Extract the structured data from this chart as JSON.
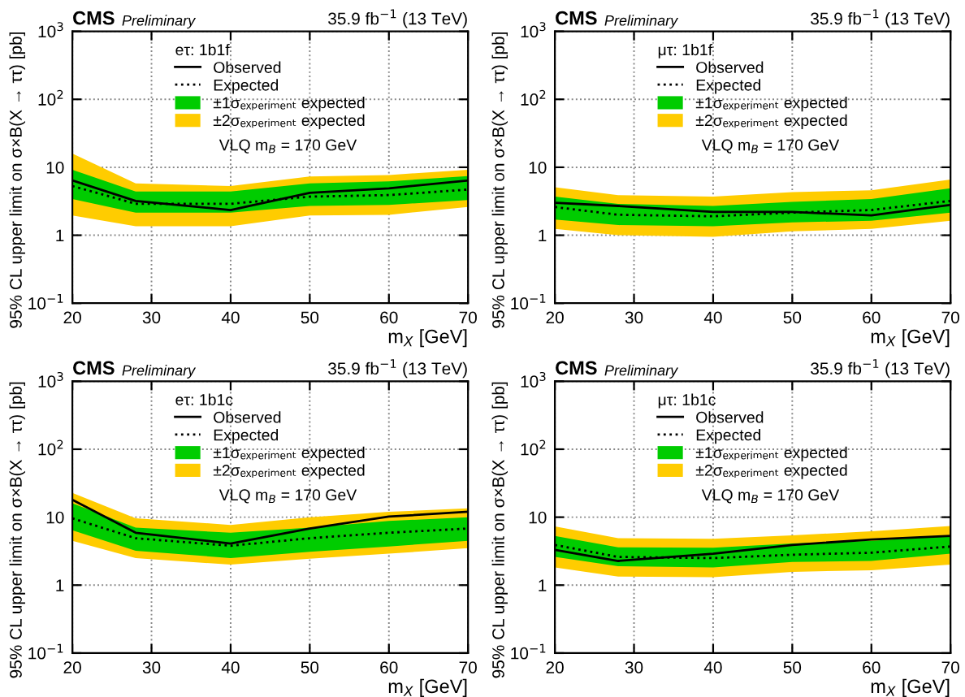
{
  "chart_data": [
    {
      "type": "line",
      "title": "CMS",
      "subtitle": "Preliminary",
      "legend_title": "eτ: 1b1f",
      "xlabel": "m$_{X}$ [GeV]",
      "ylabel": "95% CL upper limit on σ×B(X → ττ) [pb]",
      "annotations": [
        "35.9 fb$^{−1}$ (13 TeV)",
        "VLQ m$_{B}$ = 170 GeV"
      ],
      "log": "y",
      "xlim": [
        20,
        70
      ],
      "xticks": [
        20,
        30,
        40,
        50,
        60,
        70
      ],
      "ylim": [
        0.1,
        1000
      ],
      "yticks": [
        {
          "value": 0.1,
          "label": "10$^{−1}$"
        },
        1,
        10,
        {
          "value": 100,
          "label": "10$^{2}$"
        },
        {
          "value": 1000,
          "label": "10$^{3}$"
        }
      ],
      "grid": true,
      "legend": "top",
      "x": [
        20,
        28,
        40,
        50,
        60,
        70
      ],
      "series": [
        {
          "name": "±2σₑₓₚₑᵣᵢₘₑₙₜ expected",
          "color": "#ffcc00",
          "values": [
            null,
            null,
            null,
            null,
            null,
            null
          ],
          "lower": [
            1.95,
            1.36,
            1.36,
            1.96,
            2.0,
            2.6
          ],
          "upper": [
            15.9,
            5.8,
            5.3,
            7.3,
            7.7,
            9.2
          ]
        },
        {
          "name": "±1σₑₓₚₑᵣᵢₘₑₙₜ expected",
          "color": "#00cc00",
          "values": [
            null,
            null,
            null,
            null,
            null,
            null
          ],
          "lower": [
            3.4,
            2.15,
            2.15,
            2.7,
            2.8,
            3.3
          ],
          "upper": [
            9.2,
            4.4,
            4.4,
            5.8,
            6.2,
            7.4
          ]
        },
        {
          "name": "Expected",
          "color": "#000000",
          "line_style": "dotted",
          "values": [
            5.3,
            2.9,
            2.9,
            3.7,
            3.9,
            4.7
          ]
        },
        {
          "name": "Observed",
          "color": "#000000",
          "line_style": "solid",
          "values": [
            6.4,
            3.2,
            2.35,
            4.2,
            4.9,
            6.4
          ]
        }
      ]
    },
    {
      "type": "line",
      "title": "CMS",
      "subtitle": "Preliminary",
      "legend_title": "μτ: 1b1f",
      "xlabel": "m$_{X}$ [GeV]",
      "ylabel": "95% CL upper limit on σ×B(X → ττ) [pb]",
      "annotations": [
        "35.9 fb$^{−1}$ (13 TeV)",
        "VLQ m$_{B}$ = 170 GeV"
      ],
      "log": "y",
      "xlim": [
        20,
        70
      ],
      "xticks": [
        20,
        30,
        40,
        50,
        60,
        70
      ],
      "ylim": [
        0.1,
        1000
      ],
      "yticks": [
        {
          "value": 0.1,
          "label": "10$^{−1}$"
        },
        1,
        10,
        {
          "value": 100,
          "label": "10$^{2}$"
        },
        {
          "value": 1000,
          "label": "10$^{3}$"
        }
      ],
      "grid": true,
      "legend": "top",
      "x": [
        20,
        28,
        40,
        50,
        60,
        70
      ],
      "series": [
        {
          "name": "±2σₑₓₚₑᵣᵢₘₑₙₜ expected",
          "color": "#ffcc00",
          "values": [
            null,
            null,
            null,
            null,
            null,
            null
          ],
          "lower": [
            1.24,
            1.0,
            0.95,
            1.14,
            1.24,
            1.63
          ],
          "upper": [
            5.1,
            3.9,
            3.7,
            4.3,
            4.6,
            6.6
          ]
        },
        {
          "name": "±1σₑₓₚₑᵣᵢₘₑₙₜ expected",
          "color": "#00cc00",
          "values": [
            null,
            null,
            null,
            null,
            null,
            null
          ],
          "lower": [
            1.7,
            1.41,
            1.36,
            1.55,
            1.63,
            2.15
          ],
          "upper": [
            3.7,
            2.9,
            2.7,
            3.1,
            3.4,
            4.9
          ]
        },
        {
          "name": "Expected",
          "color": "#000000",
          "line_style": "dotted",
          "values": [
            2.6,
            2.0,
            1.9,
            2.15,
            2.35,
            3.2
          ]
        },
        {
          "name": "Observed",
          "color": "#000000",
          "line_style": "solid",
          "values": [
            3.0,
            2.7,
            2.2,
            2.2,
            1.96,
            2.8
          ]
        }
      ]
    },
    {
      "type": "line",
      "title": "CMS",
      "subtitle": "Preliminary",
      "legend_title": "eτ: 1b1c",
      "xlabel": "m$_{X}$ [GeV]",
      "ylabel": "95% CL upper limit on σ×B(X → ττ) [pb]",
      "annotations": [
        "35.9 fb$^{−1}$ (13 TeV)",
        "VLQ m$_{B}$ = 170 GeV"
      ],
      "log": "y",
      "xlim": [
        20,
        70
      ],
      "xticks": [
        20,
        30,
        40,
        50,
        60,
        70
      ],
      "ylim": [
        0.1,
        1000
      ],
      "yticks": [
        {
          "value": 0.1,
          "label": "10$^{−1}$"
        },
        1,
        10,
        {
          "value": 100,
          "label": "10$^{2}$"
        },
        {
          "value": 1000,
          "label": "10$^{3}$"
        }
      ],
      "grid": true,
      "legend": "top",
      "x": [
        20,
        28,
        40,
        50,
        60,
        70
      ],
      "series": [
        {
          "name": "±2σₑₓₚₑᵣᵢₘₑₙₜ expected",
          "color": "#ffcc00",
          "values": [
            null,
            null,
            null,
            null,
            null,
            null
          ],
          "lower": [
            4.5,
            2.5,
            2.0,
            2.45,
            2.9,
            3.5
          ],
          "upper": [
            22.7,
            9.6,
            7.7,
            10,
            12,
            13.5
          ]
        },
        {
          "name": "±1σₑₓₚₑᵣᵢₘₑₙₜ expected",
          "color": "#00cc00",
          "values": [
            null,
            null,
            null,
            null,
            null,
            null
          ],
          "lower": [
            6.4,
            3.2,
            2.5,
            3.1,
            3.7,
            4.5
          ],
          "upper": [
            16,
            7.0,
            5.9,
            7.0,
            8.8,
            10
          ]
        },
        {
          "name": "Expected",
          "color": "#000000",
          "line_style": "dotted",
          "values": [
            9.6,
            4.9,
            3.8,
            4.9,
            5.9,
            6.8
          ]
        },
        {
          "name": "Observed",
          "color": "#000000",
          "line_style": "solid",
          "values": [
            18,
            5.9,
            4.1,
            6.8,
            10.2,
            12
          ]
        }
      ]
    },
    {
      "type": "line",
      "title": "CMS",
      "subtitle": "Preliminary",
      "legend_title": "μτ: 1b1c",
      "xlabel": "m$_{X}$ [GeV]",
      "ylabel": "95% CL upper limit on σ×B(X → ττ) [pb]",
      "annotations": [
        "35.9 fb$^{−1}$ (13 TeV)",
        "VLQ m$_{B}$ = 170 GeV"
      ],
      "log": "y",
      "xlim": [
        20,
        70
      ],
      "xticks": [
        20,
        30,
        40,
        50,
        60,
        70
      ],
      "ylim": [
        0.1,
        1000
      ],
      "yticks": [
        {
          "value": 0.1,
          "label": "10$^{−1}$"
        },
        1,
        10,
        {
          "value": 100,
          "label": "10$^{2}$"
        },
        {
          "value": 1000,
          "label": "10$^{3}$"
        }
      ],
      "grid": true,
      "legend": "top",
      "x": [
        20,
        28,
        40,
        50,
        60,
        70
      ],
      "series": [
        {
          "name": "±2σₑₓₚₑᵣᵢₘₑₙₜ expected",
          "color": "#ffcc00",
          "values": [
            null,
            null,
            null,
            null,
            null,
            null
          ],
          "lower": [
            1.82,
            1.34,
            1.31,
            1.57,
            1.66,
            2.0
          ],
          "upper": [
            7.3,
            4.9,
            4.8,
            5.4,
            6.2,
            7.4
          ]
        },
        {
          "name": "±1σₑₓₚₑᵣᵢₘₑₙₜ expected",
          "color": "#00cc00",
          "values": [
            null,
            null,
            null,
            null,
            null,
            null
          ],
          "lower": [
            2.6,
            1.9,
            1.82,
            2.2,
            2.27,
            2.9
          ],
          "upper": [
            5.3,
            3.6,
            3.55,
            4.1,
            4.5,
            5.3
          ]
        },
        {
          "name": "Expected",
          "color": "#000000",
          "line_style": "dotted",
          "values": [
            3.9,
            2.6,
            2.5,
            2.8,
            3.0,
            3.7
          ]
        },
        {
          "name": "Observed",
          "color": "#000000",
          "line_style": "solid",
          "values": [
            3.3,
            2.27,
            2.9,
            3.9,
            4.7,
            5.3
          ]
        }
      ]
    }
  ]
}
